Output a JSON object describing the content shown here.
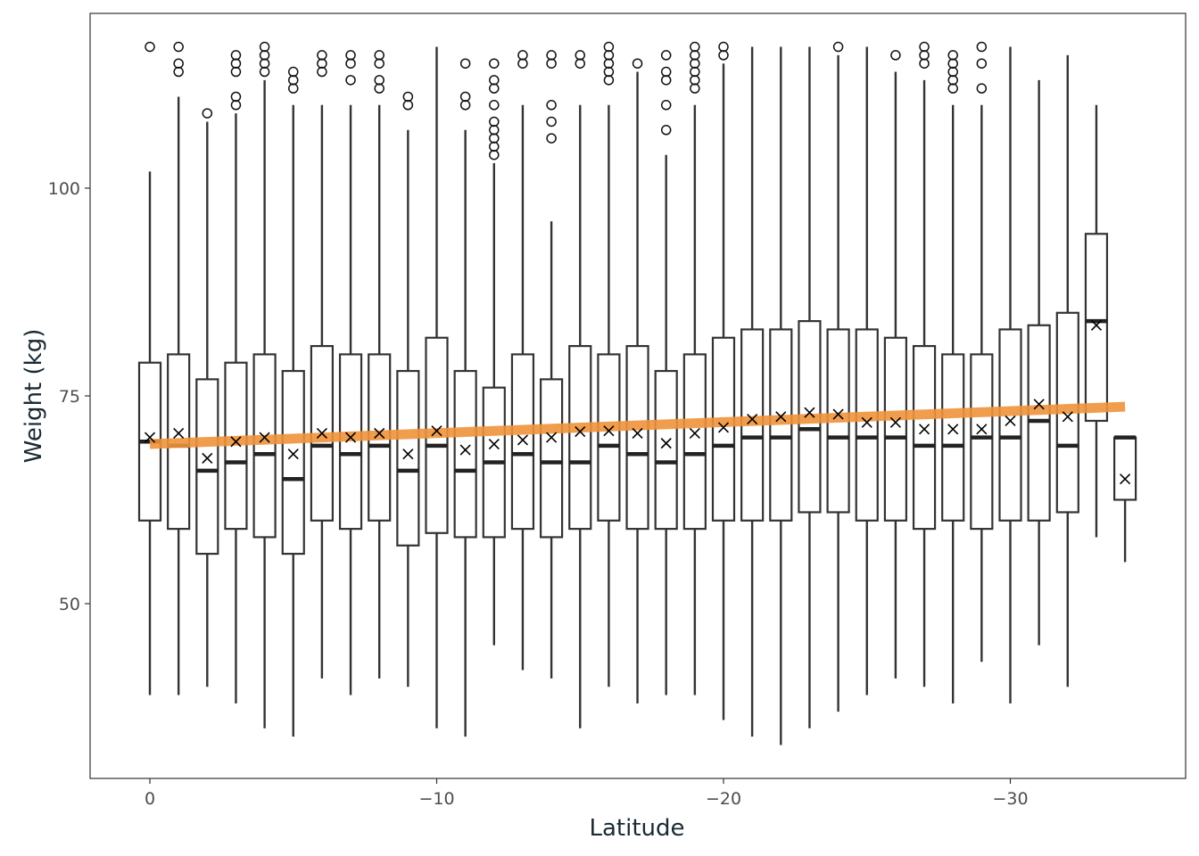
{
  "chart_data": {
    "type": "boxplot",
    "title": "",
    "xlabel": "Latitude",
    "ylabel": "Weight (kg)",
    "xlim": [
      2,
      -35
    ],
    "ylim": [
      32,
      118
    ],
    "x_ticks": [
      0,
      -10,
      -20,
      -30
    ],
    "x_tick_labels": [
      "0",
      "−10",
      "−20",
      "−30"
    ],
    "y_ticks": [
      50,
      75,
      100
    ],
    "y_tick_labels": [
      "50",
      "75",
      "100"
    ],
    "grid": false,
    "colors": {
      "trend": "#f0923b",
      "box": "#333333",
      "mean_marker": "#000000"
    },
    "boxes": [
      {
        "lat": 0,
        "lower_whisker": 39,
        "q1": 60,
        "median": 69.5,
        "q3": 79,
        "upper_whisker": 102,
        "mean": 70.0,
        "outliers": [
          117
        ]
      },
      {
        "lat": -1,
        "lower_whisker": 39,
        "q1": 59,
        "median": 69,
        "q3": 80,
        "upper_whisker": 111,
        "mean": 70.5,
        "outliers": [
          114,
          115,
          117
        ]
      },
      {
        "lat": -2,
        "lower_whisker": 40,
        "q1": 56,
        "median": 66,
        "q3": 77,
        "upper_whisker": 108,
        "mean": 67.5,
        "outliers": [
          109
        ]
      },
      {
        "lat": -3,
        "lower_whisker": 38,
        "q1": 59,
        "median": 67,
        "q3": 79,
        "upper_whisker": 109,
        "mean": 69.5,
        "outliers": [
          110,
          111,
          114,
          115,
          116
        ]
      },
      {
        "lat": -4,
        "lower_whisker": 35,
        "q1": 58,
        "median": 68,
        "q3": 80,
        "upper_whisker": 113,
        "mean": 70.0,
        "outliers": [
          114,
          115,
          116,
          117
        ]
      },
      {
        "lat": -5,
        "lower_whisker": 34,
        "q1": 56,
        "median": 65,
        "q3": 78,
        "upper_whisker": 110,
        "mean": 68.0,
        "outliers": [
          112,
          113,
          114
        ]
      },
      {
        "lat": -6,
        "lower_whisker": 41,
        "q1": 60,
        "median": 69,
        "q3": 81,
        "upper_whisker": 110,
        "mean": 70.5,
        "outliers": [
          114,
          115,
          116
        ]
      },
      {
        "lat": -7,
        "lower_whisker": 39,
        "q1": 59,
        "median": 68,
        "q3": 80,
        "upper_whisker": 110,
        "mean": 70.0,
        "outliers": [
          113,
          115,
          116
        ]
      },
      {
        "lat": -8,
        "lower_whisker": 41,
        "q1": 60,
        "median": 69,
        "q3": 80,
        "upper_whisker": 110,
        "mean": 70.5,
        "outliers": [
          112,
          113,
          115,
          116
        ]
      },
      {
        "lat": -9,
        "lower_whisker": 40,
        "q1": 57,
        "median": 66,
        "q3": 78,
        "upper_whisker": 107,
        "mean": 68.0,
        "outliers": [
          110,
          111
        ]
      },
      {
        "lat": -10,
        "lower_whisker": 35,
        "q1": 58.5,
        "median": 69,
        "q3": 82,
        "upper_whisker": 117,
        "mean": 70.8,
        "outliers": []
      },
      {
        "lat": -11,
        "lower_whisker": 34,
        "q1": 58,
        "median": 66,
        "q3": 78,
        "upper_whisker": 107,
        "mean": 68.5,
        "outliers": [
          110,
          111,
          115
        ]
      },
      {
        "lat": -12,
        "lower_whisker": 45,
        "q1": 58,
        "median": 67,
        "q3": 76,
        "upper_whisker": 103,
        "mean": 69.2,
        "outliers": [
          104,
          105,
          106,
          107,
          108,
          110,
          112,
          113,
          115
        ]
      },
      {
        "lat": -13,
        "lower_whisker": 42,
        "q1": 59,
        "median": 68,
        "q3": 80,
        "upper_whisker": 110,
        "mean": 69.7,
        "outliers": [
          115,
          116
        ]
      },
      {
        "lat": -14,
        "lower_whisker": 41,
        "q1": 58,
        "median": 67,
        "q3": 77,
        "upper_whisker": 96,
        "mean": 70.0,
        "outliers": [
          106,
          108,
          110,
          115,
          116
        ]
      },
      {
        "lat": -15,
        "lower_whisker": 35,
        "q1": 59,
        "median": 67,
        "q3": 81,
        "upper_whisker": 110,
        "mean": 70.7,
        "outliers": [
          115,
          116
        ]
      },
      {
        "lat": -16,
        "lower_whisker": 40,
        "q1": 60,
        "median": 69,
        "q3": 80,
        "upper_whisker": 110,
        "mean": 70.8,
        "outliers": [
          113,
          114,
          115,
          116,
          117
        ]
      },
      {
        "lat": -17,
        "lower_whisker": 38,
        "q1": 59,
        "median": 68,
        "q3": 81,
        "upper_whisker": 114,
        "mean": 70.5,
        "outliers": [
          115
        ]
      },
      {
        "lat": -18,
        "lower_whisker": 39,
        "q1": 59,
        "median": 67,
        "q3": 78,
        "upper_whisker": 104,
        "mean": 69.3,
        "outliers": [
          107,
          110,
          113,
          114,
          116
        ]
      },
      {
        "lat": -19,
        "lower_whisker": 39,
        "q1": 59,
        "median": 68,
        "q3": 80,
        "upper_whisker": 110,
        "mean": 70.5,
        "outliers": [
          112,
          113,
          114,
          115,
          116,
          117
        ]
      },
      {
        "lat": -20,
        "lower_whisker": 36,
        "q1": 60,
        "median": 69,
        "q3": 82,
        "upper_whisker": 115,
        "mean": 71.2,
        "outliers": [
          116,
          117
        ]
      },
      {
        "lat": -21,
        "lower_whisker": 34,
        "q1": 60,
        "median": 70,
        "q3": 83,
        "upper_whisker": 117,
        "mean": 72.2,
        "outliers": []
      },
      {
        "lat": -22,
        "lower_whisker": 33,
        "q1": 60,
        "median": 70,
        "q3": 83,
        "upper_whisker": 117,
        "mean": 72.5,
        "outliers": []
      },
      {
        "lat": -23,
        "lower_whisker": 35,
        "q1": 61,
        "median": 71,
        "q3": 84,
        "upper_whisker": 117,
        "mean": 73.0,
        "outliers": []
      },
      {
        "lat": -24,
        "lower_whisker": 37,
        "q1": 61,
        "median": 70,
        "q3": 83,
        "upper_whisker": 116,
        "mean": 72.8,
        "outliers": [
          117
        ]
      },
      {
        "lat": -25,
        "lower_whisker": 39,
        "q1": 60,
        "median": 70,
        "q3": 83,
        "upper_whisker": 117,
        "mean": 71.8,
        "outliers": []
      },
      {
        "lat": -26,
        "lower_whisker": 41,
        "q1": 60,
        "median": 70,
        "q3": 82,
        "upper_whisker": 114,
        "mean": 71.8,
        "outliers": [
          116
        ]
      },
      {
        "lat": -27,
        "lower_whisker": 40,
        "q1": 59,
        "median": 69,
        "q3": 81,
        "upper_whisker": 113,
        "mean": 71.0,
        "outliers": [
          115,
          116,
          117
        ]
      },
      {
        "lat": -28,
        "lower_whisker": 38,
        "q1": 60,
        "median": 69,
        "q3": 80,
        "upper_whisker": 110,
        "mean": 71.0,
        "outliers": [
          112,
          113,
          114,
          115,
          116
        ]
      },
      {
        "lat": -29,
        "lower_whisker": 43,
        "q1": 59,
        "median": 70,
        "q3": 80,
        "upper_whisker": 110,
        "mean": 71.0,
        "outliers": [
          112,
          115,
          117
        ]
      },
      {
        "lat": -30,
        "lower_whisker": 38,
        "q1": 60,
        "median": 70,
        "q3": 83,
        "upper_whisker": 117,
        "mean": 72.0,
        "outliers": []
      },
      {
        "lat": -31,
        "lower_whisker": 45,
        "q1": 60,
        "median": 72,
        "q3": 83.5,
        "upper_whisker": 113,
        "mean": 74.0,
        "outliers": []
      },
      {
        "lat": -32,
        "lower_whisker": 40,
        "q1": 61,
        "median": 69,
        "q3": 85,
        "upper_whisker": 116,
        "mean": 72.5,
        "outliers": []
      },
      {
        "lat": -33,
        "lower_whisker": 58,
        "q1": 72,
        "median": 84,
        "q3": 94.5,
        "upper_whisker": 110,
        "mean": 83.5,
        "outliers": []
      },
      {
        "lat": -34,
        "lower_whisker": 55,
        "q1": 62.5,
        "median": 70,
        "q3": 70,
        "upper_whisker": 70,
        "mean": 65.0,
        "outliers": []
      }
    ],
    "trend_line": {
      "x": [
        0,
        -34
      ],
      "y": [
        69.2,
        73.7
      ]
    }
  }
}
